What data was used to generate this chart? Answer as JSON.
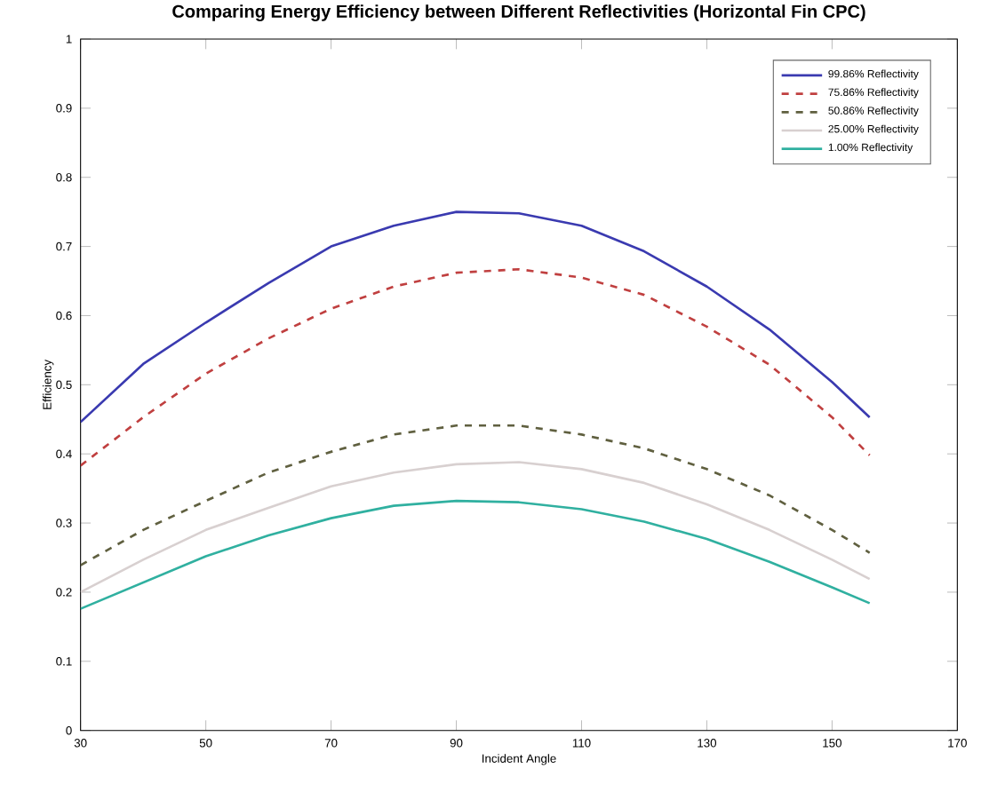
{
  "chart_data": {
    "type": "line",
    "title": "Comparing Energy Efficiency between Different Reflectivities (Horizontal Fin CPC)",
    "xlabel": "Incident Angle",
    "ylabel": "Efficiency",
    "x": [
      30,
      40,
      50,
      60,
      70,
      80,
      90,
      100,
      110,
      120,
      130,
      140,
      150,
      156
    ],
    "series": [
      {
        "name": "99.86% Reflectivity",
        "color": "#3a3ab0",
        "line_style": "solid",
        "values": [
          0.446,
          0.53,
          0.59,
          0.647,
          0.7,
          0.73,
          0.75,
          0.748,
          0.73,
          0.693,
          0.642,
          0.58,
          0.504,
          0.453
        ]
      },
      {
        "name": "75.86% Reflectivity",
        "color": "#c04040",
        "line_style": "dashed",
        "values": [
          0.383,
          0.453,
          0.516,
          0.567,
          0.61,
          0.642,
          0.662,
          0.667,
          0.655,
          0.63,
          0.584,
          0.529,
          0.453,
          0.398
        ]
      },
      {
        "name": "50.86% Reflectivity",
        "color": "#606040",
        "line_style": "dashed",
        "values": [
          0.239,
          0.29,
          0.332,
          0.373,
          0.403,
          0.428,
          0.441,
          0.441,
          0.428,
          0.408,
          0.378,
          0.34,
          0.29,
          0.257
        ]
      },
      {
        "name": "25.00% Reflectivity",
        "color": "#d8d0d0",
        "line_style": "solid",
        "values": [
          0.2,
          0.247,
          0.29,
          0.322,
          0.353,
          0.373,
          0.385,
          0.388,
          0.378,
          0.358,
          0.327,
          0.29,
          0.247,
          0.219
        ]
      },
      {
        "name": "1.00% Reflectivity",
        "color": "#30b0a0",
        "line_style": "solid",
        "values": [
          0.176,
          0.214,
          0.252,
          0.282,
          0.307,
          0.325,
          0.332,
          0.33,
          0.32,
          0.302,
          0.277,
          0.244,
          0.207,
          0.184
        ]
      }
    ],
    "xlim": [
      30,
      170
    ],
    "xticks": [
      30,
      50,
      70,
      90,
      110,
      130,
      150,
      170
    ],
    "ylim": [
      0,
      1
    ],
    "yticks": [
      0,
      0.1,
      0.2,
      0.3,
      0.4,
      0.5,
      0.6,
      0.7,
      0.8,
      0.9,
      1
    ],
    "grid": false,
    "legend": "top right",
    "marker": "none"
  }
}
